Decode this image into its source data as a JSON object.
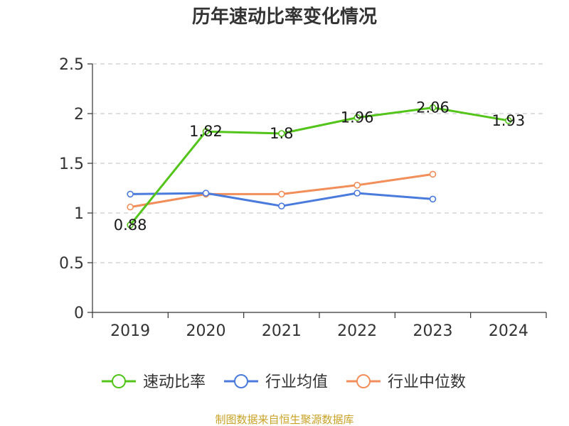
{
  "chart_data": {
    "type": "line",
    "title": "历年速动比率变化情况",
    "categories": [
      "2019",
      "2020",
      "2021",
      "2022",
      "2023",
      "2024"
    ],
    "ylim": [
      0,
      2.5
    ],
    "yticks": [
      "0",
      "0.5",
      "1",
      "1.5",
      "2",
      "2.5"
    ],
    "ytick_values": [
      0,
      0.5,
      1,
      1.5,
      2,
      2.5
    ],
    "grid": true,
    "legend_position": "bottom",
    "series": [
      {
        "name": "速动比率",
        "color": "#52c41a",
        "values": [
          0.88,
          1.82,
          1.8,
          1.96,
          2.06,
          1.93
        ],
        "labels": [
          "0.88",
          "1.82",
          "1.8",
          "1.96",
          "2.06",
          "1.93"
        ]
      },
      {
        "name": "行业均值",
        "color": "#4a7bdc",
        "values": [
          1.19,
          1.2,
          1.07,
          1.2,
          1.14,
          null
        ]
      },
      {
        "name": "行业中位数",
        "color": "#f28e5a",
        "values": [
          1.06,
          1.19,
          1.19,
          1.28,
          1.39,
          null
        ]
      }
    ],
    "source": "制图数据来自恒生聚源数据库"
  }
}
